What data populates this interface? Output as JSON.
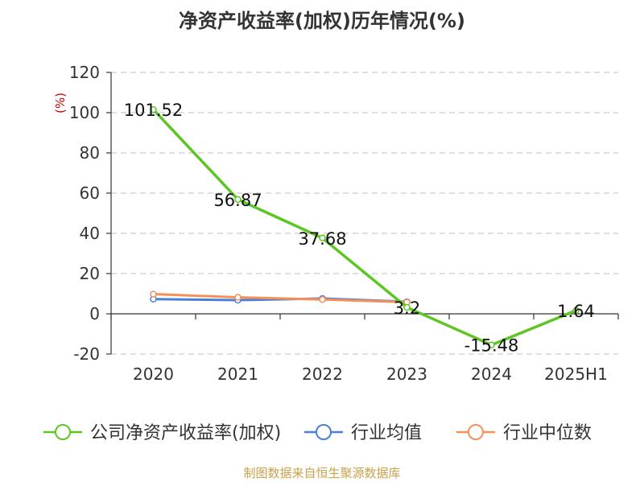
{
  "source": "制图数据来自恒生聚源数据库",
  "colors": {
    "company": "#5cc623",
    "industry_avg": "#4a7fd6",
    "industry_median": "#f59059",
    "ylabel": "#cc0000",
    "source": "#c8a24a"
  },
  "chart_data": {
    "type": "line",
    "title": "净资产收益率(加权)历年情况(%)",
    "xlabel": "",
    "ylabel": "(%)",
    "categories": [
      "2020",
      "2021",
      "2022",
      "2023",
      "2024",
      "2025H1"
    ],
    "ylim": [
      -20,
      120
    ],
    "yticks": [
      -20,
      0,
      20,
      40,
      60,
      80,
      100,
      120
    ],
    "grid": true,
    "legend_position": "bottom",
    "series": [
      {
        "name": "公司净资产收益率(加权)",
        "values": [
          101.52,
          56.87,
          37.68,
          3.2,
          -15.48,
          1.64
        ],
        "labels": [
          "101.52",
          "56.87",
          "37.68",
          "3.2",
          "-15.48",
          "1.64"
        ]
      },
      {
        "name": "行业均值",
        "values": [
          7.3,
          6.8,
          7.6,
          6.0,
          null,
          null
        ]
      },
      {
        "name": "行业中位数",
        "values": [
          9.8,
          8.2,
          7.1,
          5.8,
          null,
          null
        ]
      }
    ]
  }
}
